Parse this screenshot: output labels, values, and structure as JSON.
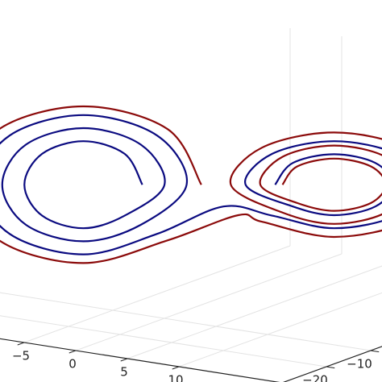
{
  "chart_data": {
    "type": "line3d",
    "xlim": [
      -20,
      20
    ],
    "ylim": [
      -30,
      30
    ],
    "zlim": [
      0,
      50
    ],
    "xticks": [
      {
        "value": -5,
        "label": "−5"
      },
      0,
      5,
      10
    ],
    "yticks": [
      {
        "value": -20,
        "label": "−20"
      },
      {
        "value": -10,
        "label": "−10"
      }
    ],
    "grid": true,
    "series": [
      {
        "color": "#8b0a0a",
        "x": [
          -0.5,
          -2.8,
          -8.5,
          -14.2,
          -16.5,
          -14.2,
          -8.5,
          -2.8,
          2,
          3.6,
          8.5,
          13.4,
          15.5,
          13.4,
          8.5,
          3.6,
          1.5,
          5,
          8.5,
          12,
          13.5,
          12,
          8.5,
          5,
          3.5,
          6,
          8.5,
          11,
          12,
          11,
          8.5,
          6,
          5
        ],
        "y": [
          -0.5,
          -2.8,
          -8.5,
          -14.2,
          -16.5,
          -14.2,
          -8.5,
          -2.8,
          2,
          3.6,
          8.5,
          13.4,
          15.5,
          13.4,
          8.5,
          3.6,
          1.5,
          5,
          8.5,
          12,
          13.5,
          12,
          8.5,
          5,
          3.5,
          6,
          8.5,
          11,
          12,
          11,
          8.5,
          6,
          5
        ],
        "z": [
          27,
          39.8,
          45,
          39.8,
          27,
          14.2,
          9,
          14.2,
          20,
          18.5,
          15,
          18.5,
          27,
          35.5,
          39,
          35.5,
          27,
          20.6,
          18,
          20.6,
          27,
          33.4,
          36,
          33.4,
          27,
          22.8,
          21,
          22.8,
          27,
          31.2,
          33,
          31.2,
          27
        ]
      },
      {
        "color": "#0a0a80",
        "x": [
          -4.5,
          -5.7,
          -8.5,
          -11.3,
          -12.5,
          -11.3,
          -8.5,
          -5.7,
          -3,
          -4.6,
          -8.5,
          -12.4,
          -14,
          -12.4,
          -8.5,
          -4.6,
          -1.5,
          -3.5,
          -8.5,
          -13.5,
          -15.5,
          -13.5,
          -8.5,
          -3.5,
          1,
          4.3,
          8.5,
          12.7,
          14.5,
          12.7,
          8.5,
          4.3,
          2.5,
          5.7,
          8.5,
          11.3,
          12.5,
          11.3,
          8.5,
          5.7,
          4.5
        ],
        "y": [
          -4.5,
          -5.7,
          -8.5,
          -11.3,
          -12.5,
          -11.3,
          -8.5,
          -5.7,
          -3,
          -4.6,
          -8.5,
          -12.4,
          -14,
          -12.4,
          -8.5,
          -4.6,
          -1.5,
          -3.5,
          -8.5,
          -13.5,
          -15.5,
          -13.5,
          -8.5,
          -3.5,
          1,
          4.3,
          8.5,
          12.7,
          14.5,
          12.7,
          8.5,
          4.3,
          2.5,
          5.7,
          8.5,
          11.3,
          12.5,
          11.3,
          8.5,
          5.7,
          4.5
        ],
        "z": [
          27,
          34.1,
          37,
          34.1,
          27,
          19.9,
          17,
          19.9,
          27,
          36.2,
          40,
          36.2,
          27,
          17.8,
          14,
          17.8,
          27,
          38.3,
          43,
          38.3,
          27,
          15.7,
          11,
          15.7,
          22,
          19.9,
          17,
          19.9,
          27,
          34.1,
          37,
          34.1,
          27,
          22,
          20,
          22,
          27,
          32,
          34,
          32,
          27
        ]
      }
    ]
  }
}
